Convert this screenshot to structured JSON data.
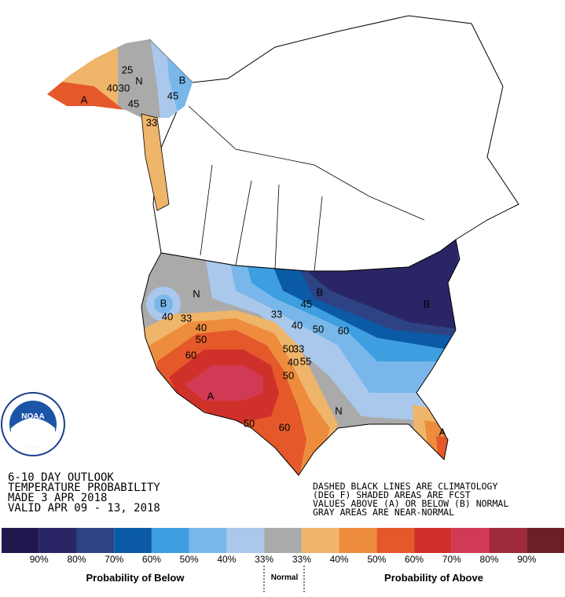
{
  "outlook": {
    "title_lines": [
      "6-10 DAY OUTLOOK",
      "TEMPERATURE PROBABILITY",
      "MADE  3 APR 2018",
      "VALID  APR 09 - 13, 2018"
    ],
    "notes": [
      "DASHED BLACK LINES ARE CLIMATOLOGY",
      "(DEG F) SHADED AREAS ARE FCST",
      "VALUES ABOVE (A) OR BELOW (B) NORMAL",
      "GRAY AREAS ARE NEAR-NORMAL"
    ],
    "logo": "NOAA",
    "map_labels": [
      "N",
      "B",
      "40",
      "30",
      "25",
      "A",
      "45",
      "33",
      "45",
      "B",
      "N",
      "33",
      "40",
      "40",
      "50",
      "60",
      "A",
      "33",
      "40",
      "50",
      "60",
      "B",
      "B",
      "45",
      "50",
      "33",
      "40",
      "55",
      "50",
      "N",
      "A",
      "60",
      "50"
    ]
  },
  "legend": {
    "colors": [
      "#21184f",
      "#2a2666",
      "#2e4383",
      "#0b5aa5",
      "#3d9ee0",
      "#79b7eb",
      "#a9c8ec",
      "#aaaaaa",
      "#efb56a",
      "#ee8c3d",
      "#e5582a",
      "#d0302a",
      "#d13a55",
      "#9e2a3a",
      "#6e1f26"
    ],
    "labels": [
      "90%",
      "80%",
      "70%",
      "60%",
      "50%",
      "40%",
      "33%",
      "33%",
      "40%",
      "50%",
      "60%",
      "70%",
      "80%",
      "90%"
    ],
    "below": "Probability of Below",
    "normal": "Normal",
    "above": "Probability of Above"
  }
}
